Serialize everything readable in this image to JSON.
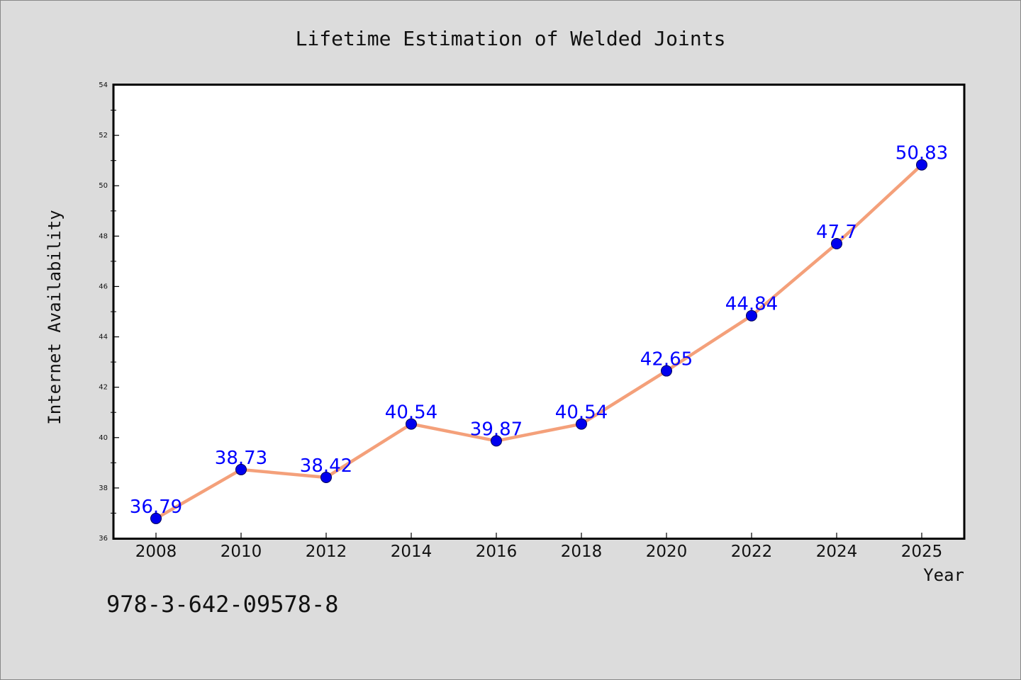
{
  "chart_data": {
    "type": "line",
    "title": "Lifetime Estimation of Welded Joints",
    "xlabel": "Year",
    "ylabel": "Internet Availability",
    "categories": [
      "2008",
      "2010",
      "2012",
      "2014",
      "2016",
      "2018",
      "2020",
      "2022",
      "2024",
      "2025"
    ],
    "values": [
      36.79,
      38.73,
      38.42,
      40.54,
      39.87,
      40.54,
      42.65,
      44.84,
      47.7,
      50.83
    ],
    "data_labels": [
      "36.79",
      "38.73",
      "38.42",
      "40.54",
      "39.87",
      "40.54",
      "42.65",
      "44.84",
      "47.7",
      "50.83"
    ],
    "ylim": [
      36,
      54
    ],
    "yticks": [
      "36",
      "38",
      "40",
      "42",
      "44",
      "46",
      "48",
      "50",
      "52",
      "54"
    ],
    "grid": false,
    "line_color": "#f4a07a",
    "marker_color": "#0000ee",
    "label_color": "#0000ff"
  },
  "footnote": "978-3-642-09578-8"
}
